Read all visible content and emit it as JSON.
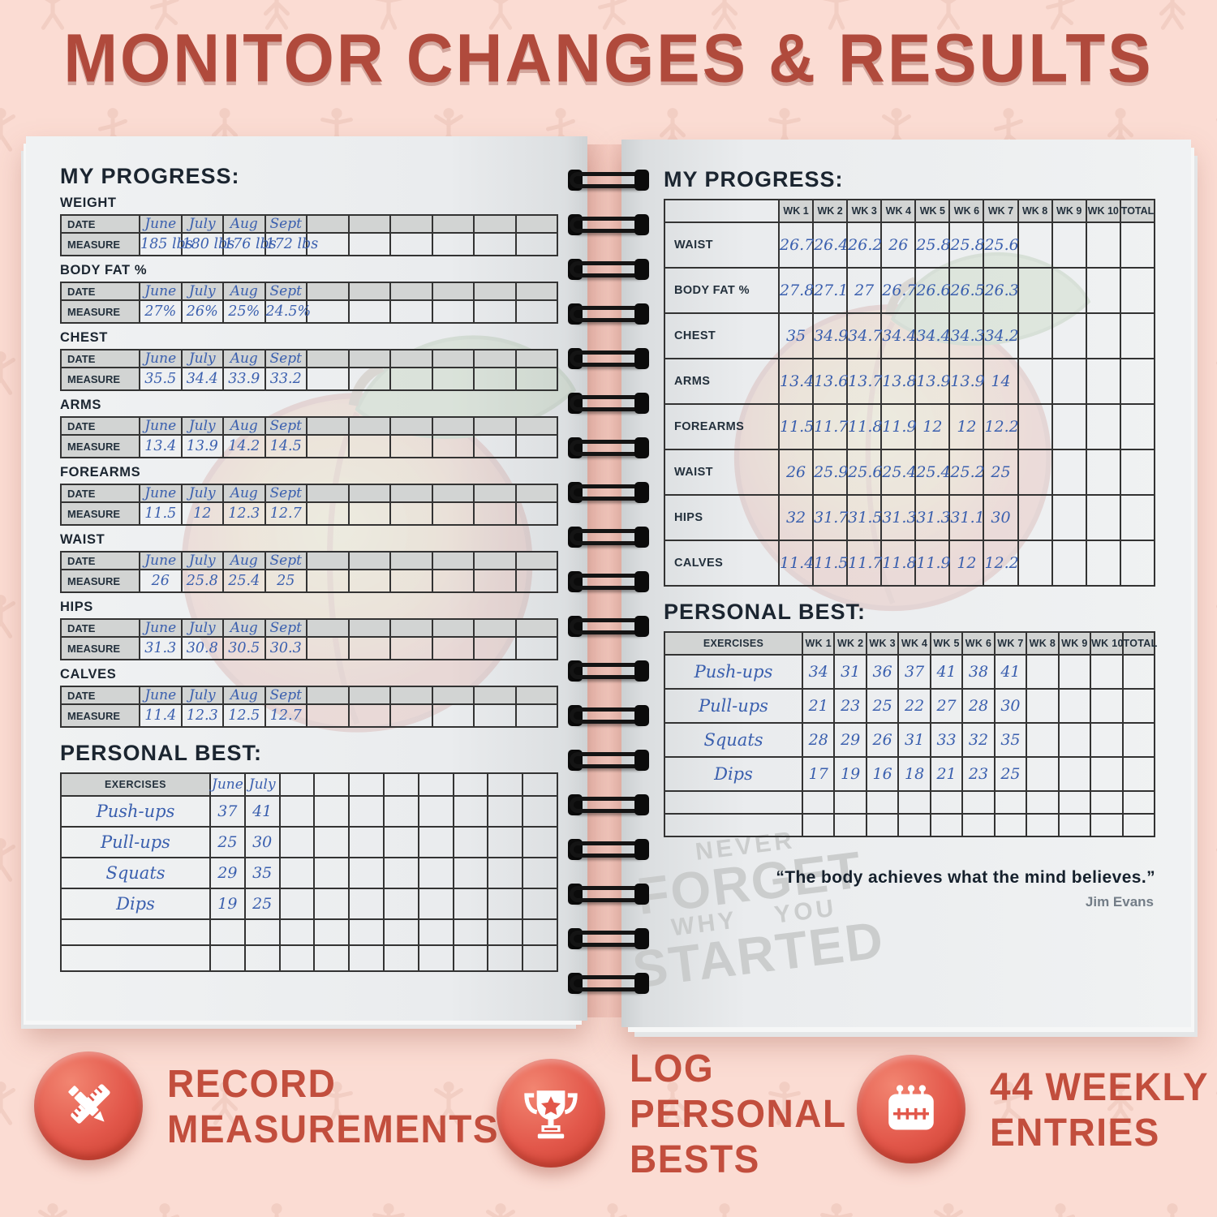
{
  "title": "MONITOR CHANGES & RESULTS",
  "left_page": {
    "heading": "MY PROGRESS:",
    "date_label": "DATE",
    "measure_label": "MEASURE",
    "months": [
      "June",
      "July",
      "Aug",
      "Sept"
    ],
    "data_columns": 10,
    "sections": [
      {
        "name": "WEIGHT",
        "values": [
          "185 lbs",
          "180 lbs",
          "176 lbs",
          "172 lbs"
        ]
      },
      {
        "name": "BODY FAT %",
        "values": [
          "27%",
          "26%",
          "25%",
          "24.5%"
        ]
      },
      {
        "name": "CHEST",
        "values": [
          "35.5",
          "34.4",
          "33.9",
          "33.2"
        ]
      },
      {
        "name": "ARMS",
        "values": [
          "13.4",
          "13.9",
          "14.2",
          "14.5"
        ]
      },
      {
        "name": "FOREARMS",
        "values": [
          "11.5",
          "12",
          "12.3",
          "12.7"
        ]
      },
      {
        "name": "WAIST",
        "values": [
          "26",
          "25.8",
          "25.4",
          "25"
        ]
      },
      {
        "name": "HIPS",
        "values": [
          "31.3",
          "30.8",
          "30.5",
          "30.3"
        ]
      },
      {
        "name": "CALVES",
        "values": [
          "11.4",
          "12.3",
          "12.5",
          "12.7"
        ]
      }
    ],
    "personal_best": {
      "heading": "PERSONAL BEST:",
      "exercises_label": "EXERCISES",
      "filled_month_headers": [
        "June",
        "July"
      ],
      "rows": [
        {
          "exercise": "Push-ups",
          "values": [
            "37",
            "41"
          ]
        },
        {
          "exercise": "Pull-ups",
          "values": [
            "25",
            "30"
          ]
        },
        {
          "exercise": "Squats",
          "values": [
            "29",
            "35"
          ]
        },
        {
          "exercise": "Dips",
          "values": [
            "19",
            "25"
          ]
        }
      ],
      "empty_rows": 2
    }
  },
  "right_page": {
    "heading": "MY PROGRESS:",
    "week_headers": [
      "WK 1",
      "WK 2",
      "WK 3",
      "WK 4",
      "WK 5",
      "WK 6",
      "WK 7",
      "WK 8",
      "WK 9",
      "WK 10",
      "TOTAL"
    ],
    "rows": [
      {
        "name": "WAIST",
        "values": [
          "26.7",
          "26.4",
          "26.2",
          "26",
          "25.8",
          "25.8",
          "25.6"
        ]
      },
      {
        "name": "BODY FAT %",
        "values": [
          "27.8",
          "27.1",
          "27",
          "26.7",
          "26.6",
          "26.5",
          "26.3"
        ]
      },
      {
        "name": "CHEST",
        "values": [
          "35",
          "34.9",
          "34.7",
          "34.4",
          "34.4",
          "34.3",
          "34.2"
        ]
      },
      {
        "name": "ARMS",
        "values": [
          "13.4",
          "13.6",
          "13.7",
          "13.8",
          "13.9",
          "13.9",
          "14"
        ]
      },
      {
        "name": "FOREARMS",
        "values": [
          "11.5",
          "11.7",
          "11.8",
          "11.9",
          "12",
          "12",
          "12.2"
        ]
      },
      {
        "name": "WAIST",
        "values": [
          "26",
          "25.9",
          "25.6",
          "25.4",
          "25.4",
          "25.2",
          "25"
        ]
      },
      {
        "name": "HIPS",
        "values": [
          "32",
          "31.7",
          "31.5",
          "31.3",
          "31.3",
          "31.1",
          "30"
        ]
      },
      {
        "name": "CALVES",
        "values": [
          "11.4",
          "11.5",
          "11.7",
          "11.8",
          "11.9",
          "12",
          "12.2"
        ]
      }
    ],
    "personal_best": {
      "heading": "PERSONAL BEST:",
      "exercises_label": "EXERCISES",
      "rows": [
        {
          "exercise": "Push-ups",
          "values": [
            "34",
            "31",
            "36",
            "37",
            "41",
            "38",
            "41"
          ]
        },
        {
          "exercise": "Pull-ups",
          "values": [
            "21",
            "23",
            "25",
            "22",
            "27",
            "28",
            "30"
          ]
        },
        {
          "exercise": "Squats",
          "values": [
            "28",
            "29",
            "26",
            "31",
            "33",
            "32",
            "35"
          ]
        },
        {
          "exercise": "Dips",
          "values": [
            "17",
            "19",
            "16",
            "18",
            "21",
            "23",
            "25"
          ]
        }
      ],
      "empty_rows": 2
    },
    "quote": "“The body achieves what the mind believes.”",
    "quote_author": "Jim Evans",
    "watermark": {
      "line1": "NEVER",
      "line2": "FORGET",
      "line3": "WHY",
      "line4": "YOU",
      "line5": "STARTED"
    }
  },
  "features": [
    {
      "icon": "ruler-pencil-icon",
      "line1": "RECORD",
      "line2": "MEASUREMENTS"
    },
    {
      "icon": "trophy-icon",
      "line1": "LOG",
      "line2": "PERSONAL",
      "line3": "BESTS"
    },
    {
      "icon": "calendar-icon",
      "line1": "44 WEEKLY",
      "line2": "ENTRIES"
    }
  ],
  "colors": {
    "background_pink": "#fbdcd3",
    "title_red": "#b04a3c",
    "feature_red": "#c24e3d",
    "icon_red": "#e2574a",
    "ink_blue": "#3a5fae",
    "page_white": "#edeff0",
    "cell_gray": "#d2d4d3",
    "table_border": "#333333",
    "label_dark": "#1b2530",
    "quote_dark": "#15202c",
    "author_gray": "#737d87",
    "watermark_gray": "#c6c8c8",
    "binding_black": "#141414"
  }
}
